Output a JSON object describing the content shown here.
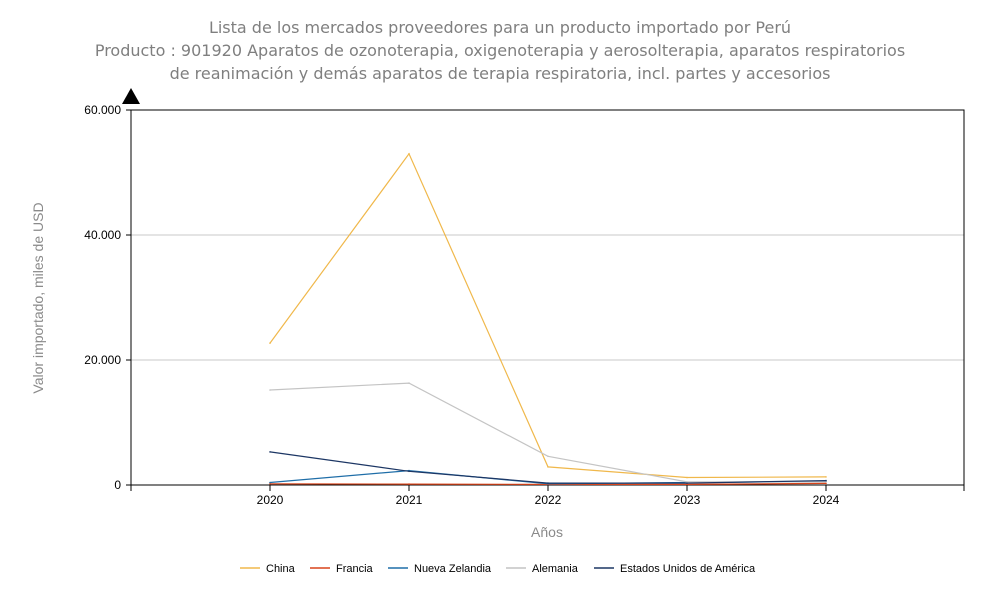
{
  "chart_data": {
    "type": "line",
    "title_lines": [
      "Lista de los mercados proveedores para un producto importado por Perú",
      "Producto : 901920 Aparatos de ozonoterapia, oxigenoterapia y aerosolterapia, aparatos respiratorios",
      "de reanimación y demás aparatos de terapia respiratoria, incl. partes y accesorios"
    ],
    "xlabel": "Años",
    "ylabel": "Valor importado, miles de USD",
    "x": [
      "2020",
      "2021",
      "2022",
      "2023",
      "2024"
    ],
    "ylim": [
      0,
      60000
    ],
    "yticks": [
      0,
      20000,
      40000,
      60000
    ],
    "ytick_labels": [
      "0",
      "20.000",
      "40.000",
      "60.000"
    ],
    "grid": true,
    "legend_position": "bottom",
    "series": [
      {
        "name": "China",
        "color": "#f0b84b",
        "values": [
          22700,
          53000,
          2900,
          1200,
          1300
        ]
      },
      {
        "name": "Francia",
        "color": "#d9441a",
        "values": [
          200,
          150,
          100,
          100,
          250
        ]
      },
      {
        "name": "Nueva Zelandia",
        "color": "#1f6ea8",
        "values": [
          400,
          2300,
          200,
          400,
          600
        ]
      },
      {
        "name": "Alemania",
        "color": "#c4c4c4",
        "values": [
          15200,
          16300,
          4600,
          500,
          500
        ]
      },
      {
        "name": "Estados Unidos de América",
        "color": "#1c3664",
        "values": [
          5300,
          2200,
          300,
          300,
          700
        ]
      }
    ]
  }
}
